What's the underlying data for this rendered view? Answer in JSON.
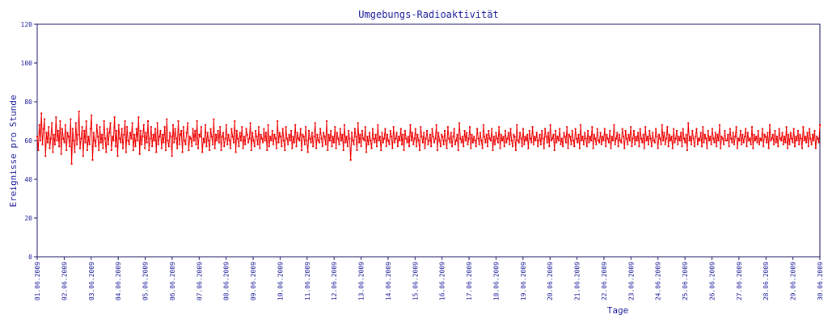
{
  "chart_data": {
    "type": "line",
    "title": "Umgebungs-Radioaktivität",
    "xlabel": "Tage",
    "ylabel": "Ereignisse pro Stunde",
    "ylim": [
      0,
      120
    ],
    "yticks": [
      0,
      20,
      40,
      60,
      80,
      100,
      120
    ],
    "xlim": [
      "2009-06-01",
      "2009-06-30"
    ],
    "x_tick_labels": [
      "01.06.2009",
      "02.06.2009",
      "03.06.2009",
      "04.06.2009",
      "05.06.2009",
      "06.06.2009",
      "07.06.2009",
      "08.06.2009",
      "09.06.2009",
      "10.06.2009",
      "11.06.2009",
      "12.06.2009",
      "13.06.2009",
      "14.06.2009",
      "15.06.2009",
      "16.06.2009",
      "17.06.2009",
      "18.06.2009",
      "19.06.2009",
      "20.06.2009",
      "21.06.2009",
      "22.06.2009",
      "23.06.2009",
      "24.06.2009",
      "25.06.2009",
      "26.06.2009",
      "27.06.2009",
      "28.06.2009",
      "29.06.2009",
      "30.06.2009"
    ],
    "grid": false,
    "line_color": "#ee0000",
    "series": [
      {
        "values": [
          62,
          55,
          68,
          60,
          74,
          58,
          66,
          71,
          52,
          64,
          59,
          67,
          56,
          61,
          69,
          54,
          63,
          58,
          72,
          60,
          65,
          57,
          70,
          53,
          66,
          61,
          59,
          68,
          55,
          64,
          62,
          57,
          71,
          48,
          66,
          60,
          54,
          69,
          58,
          63,
          75,
          56,
          61,
          67,
          52,
          65,
          59,
          70,
          55,
          62,
          58,
          66,
          73,
          50,
          64,
          60,
          57,
          68,
          62,
          55,
          67,
          59,
          63,
          56,
          70,
          61,
          54,
          66,
          58,
          64,
          69,
          55,
          62,
          60,
          72,
          57,
          65,
          52,
          68,
          61,
          59,
          66,
          56,
          63,
          70,
          54,
          67,
          60,
          58,
          64,
          61,
          69,
          55,
          63,
          57,
          66,
          60,
          72,
          53,
          65,
          58,
          62,
          68,
          56,
          64,
          59,
          70,
          55,
          61,
          67,
          57,
          63,
          60,
          66,
          54,
          69,
          58,
          62,
          65,
          56,
          63,
          59,
          67,
          55,
          71,
          60,
          57,
          64,
          62,
          52,
          68,
          59,
          66,
          61,
          56,
          70,
          58,
          63,
          65,
          54,
          67,
          60,
          58,
          64,
          69,
          55,
          62,
          61,
          57,
          66,
          60,
          65,
          58,
          70,
          56,
          63,
          62,
          67,
          54,
          61,
          59,
          68,
          57,
          64,
          60,
          55,
          66,
          62,
          58,
          71,
          56,
          63,
          60,
          65,
          59,
          67,
          55,
          62,
          64,
          57,
          61,
          68,
          58,
          63,
          60,
          56,
          66,
          62,
          59,
          70,
          54,
          65,
          61,
          57,
          64,
          60,
          67,
          56,
          62,
          58,
          66,
          63,
          59,
          61,
          69,
          55,
          64,
          60,
          57,
          65,
          62,
          58,
          67,
          56,
          63,
          61,
          59,
          66,
          60,
          64,
          55,
          68,
          57,
          62,
          60,
          65,
          58,
          63,
          61,
          56,
          70,
          59,
          64,
          62,
          57,
          66,
          60,
          55,
          67,
          61,
          58,
          63,
          60,
          65,
          56,
          62,
          59,
          68,
          57,
          64,
          61,
          60,
          66,
          55,
          63,
          62,
          58,
          67,
          60,
          54,
          65,
          61,
          59,
          64,
          57,
          62,
          69,
          56,
          63,
          60,
          59,
          66,
          61,
          57,
          64,
          62,
          58,
          70,
          55,
          63,
          60,
          65,
          57,
          62,
          59,
          67,
          56,
          64,
          61,
          58,
          66,
          60,
          63,
          55,
          68,
          59,
          62,
          57,
          65,
          61,
          50,
          64,
          60,
          58,
          66,
          62,
          55,
          69,
          59,
          63,
          57,
          65,
          61,
          60,
          67,
          54,
          62,
          58,
          64,
          60,
          56,
          66,
          61,
          59,
          63,
          57,
          68,
          60,
          62,
          55,
          64,
          59,
          61,
          66,
          57,
          63,
          60,
          58,
          65,
          62,
          56,
          67,
          59,
          61,
          64,
          57,
          62,
          60,
          66,
          58,
          63,
          55,
          65,
          61,
          59,
          62,
          57,
          68,
          60,
          64,
          58,
          61,
          66,
          57,
          63,
          60,
          55,
          67,
          62,
          59,
          64,
          56,
          61,
          65,
          58,
          60,
          63,
          57,
          66,
          62,
          59,
          61,
          68,
          55,
          64,
          60,
          57,
          63,
          62,
          58,
          65,
          60,
          56,
          67,
          61,
          59,
          64,
          57,
          62,
          66,
          58,
          60,
          63,
          55,
          69,
          61,
          59,
          62,
          57,
          65,
          60,
          64,
          58,
          61,
          67,
          56,
          63,
          59,
          62,
          60,
          57,
          66,
          61,
          58,
          64,
          60,
          56,
          68,
          62,
          59,
          63,
          57,
          65,
          61,
          60,
          66,
          55,
          62,
          58,
          64,
          61,
          59,
          67,
          56,
          63,
          60,
          62,
          57,
          65,
          59,
          61,
          64,
          58,
          66,
          60,
          57,
          63,
          62,
          55,
          68,
          60,
          59,
          64,
          61,
          57,
          66,
          58,
          62,
          60,
          63,
          56,
          65,
          61,
          59,
          67,
          58,
          62,
          60,
          64,
          57,
          60,
          63,
          58,
          65,
          61,
          56,
          66,
          62,
          59,
          64,
          57,
          68,
          60,
          61,
          63,
          55,
          65,
          59,
          62,
          60,
          66,
          58,
          61,
          57,
          64,
          62,
          59,
          67,
          56,
          63,
          62,
          58,
          65,
          60,
          57,
          66,
          61,
          59,
          63,
          56,
          68,
          60,
          62,
          58,
          64,
          61,
          57,
          65,
          59,
          62,
          60,
          67,
          56,
          63,
          61,
          58,
          66,
          60,
          59,
          64,
          58,
          62,
          60,
          66,
          57,
          63,
          61,
          59,
          65,
          56,
          62,
          60,
          68,
          58,
          61,
          64,
          57,
          63,
          60,
          59,
          66,
          62,
          56,
          65,
          61,
          58,
          63,
          60,
          67,
          57,
          61,
          65,
          58,
          62,
          60,
          64,
          57,
          66,
          61,
          59,
          63,
          56,
          67,
          60,
          62,
          58,
          65,
          61,
          57,
          64,
          60,
          59,
          66,
          62,
          56,
          63,
          61,
          58,
          68,
          60,
          64,
          58,
          61,
          67,
          57,
          63,
          60,
          62,
          56,
          66,
          59,
          61,
          65,
          58,
          62,
          60,
          64,
          57,
          66,
          61,
          59,
          63,
          55,
          69,
          60,
          62,
          58,
          65,
          61,
          57,
          62,
          66,
          58,
          61,
          60,
          64,
          57,
          67,
          59,
          63,
          61,
          56,
          65,
          60,
          62,
          58,
          66,
          61,
          59,
          64,
          57,
          63,
          60,
          68,
          56,
          62,
          61,
          58,
          65,
          60,
          60,
          63,
          57,
          66,
          61,
          59,
          64,
          58,
          62,
          67,
          56,
          61,
          60,
          65,
          58,
          63,
          59,
          62,
          66,
          57,
          64,
          60,
          61,
          58,
          67,
          56,
          63,
          60,
          62,
          59,
          65,
          58,
          61,
          60,
          66,
          57,
          63,
          62,
          59,
          64,
          56,
          68,
          60,
          61,
          63,
          58,
          65,
          59,
          62,
          57,
          66,
          61,
          60,
          64,
          58,
          62,
          59,
          67,
          56,
          63,
          58,
          64,
          61,
          59,
          66,
          57,
          62,
          60,
          65,
          58,
          63,
          61,
          56,
          67,
          60,
          62,
          59,
          64,
          57,
          66,
          61,
          58,
          63,
          60,
          65,
          56,
          62,
          61,
          59,
          68
        ]
      }
    ]
  }
}
